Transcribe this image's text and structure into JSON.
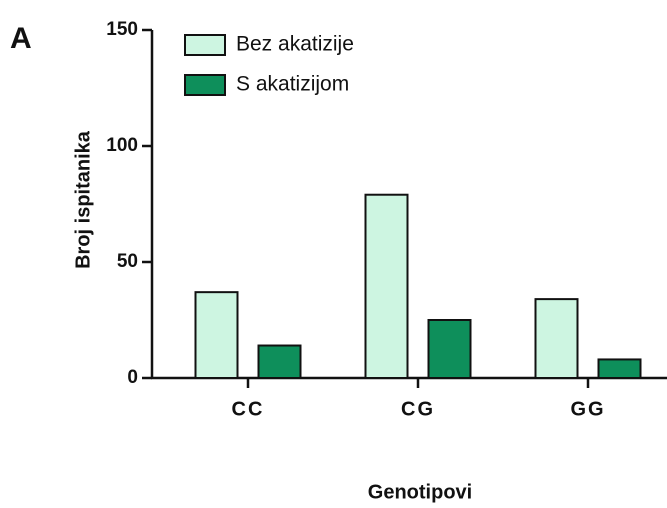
{
  "chart_data": {
    "type": "bar",
    "panel_label": "A",
    "x_label": "Genotipovi",
    "y_label": "Broj ispitanika",
    "categories": [
      "CC",
      "CG",
      "GG"
    ],
    "series": [
      {
        "name": "Bez akatizije",
        "color": "#cdf5e1",
        "values": [
          37,
          79,
          34
        ]
      },
      {
        "name": "S akatizijom",
        "color": "#0e8f5b",
        "values": [
          14,
          25,
          8
        ]
      }
    ],
    "ylim": [
      0,
      150
    ],
    "yticks": [
      0,
      50,
      100,
      150
    ],
    "legend": "upper left"
  }
}
